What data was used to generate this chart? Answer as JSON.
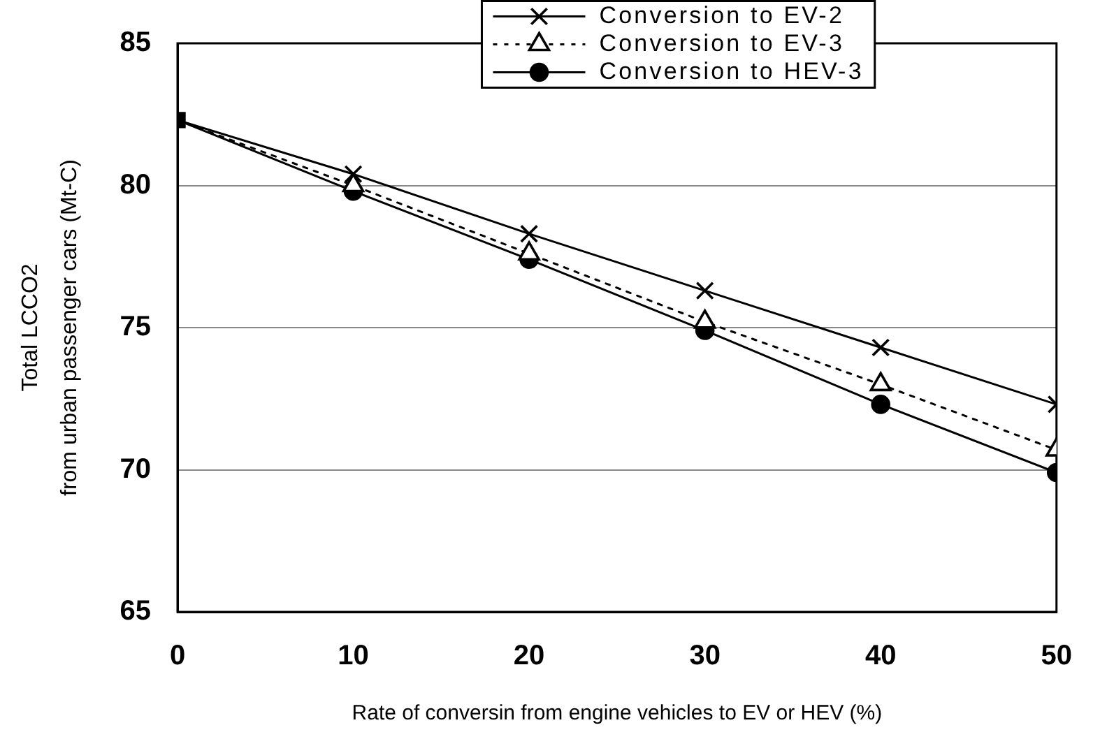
{
  "chart_data": {
    "type": "line",
    "xlabel": "Rate of conversin from engine vehicles to EV or HEV (%)",
    "ylabel": "Total LCCO2\nfrom urban passenger cars (Mt-C)",
    "x": [
      0,
      10,
      20,
      30,
      40,
      50
    ],
    "series": [
      {
        "type": "scatter",
        "color": "#000000",
        "marker": "square",
        "x": [
          0
        ],
        "values": [
          82.3
        ]
      },
      {
        "name": "Conversion to EV-2",
        "color": "#000000",
        "marker": "cross",
        "line_style": "solid",
        "values": [
          82.3,
          80.4,
          78.3,
          76.3,
          74.3,
          72.3
        ]
      },
      {
        "name": "Conversion to EV-3",
        "color": "#000000",
        "marker": "triangle",
        "line_style": "dotted",
        "values": [
          82.3,
          80.0,
          77.6,
          75.2,
          73.0,
          70.7
        ]
      },
      {
        "name": "Conversion to HEV-3",
        "color": "#000000",
        "marker": "circle",
        "line_style": "solid",
        "values": [
          82.3,
          79.8,
          77.4,
          74.9,
          72.3,
          69.9
        ]
      }
    ],
    "xlim": [
      0,
      50
    ],
    "xticks": [
      0,
      10,
      20,
      30,
      40,
      50
    ],
    "ylim": [
      65,
      85
    ],
    "yticks": [
      65,
      70,
      75,
      80,
      85
    ],
    "grid": "y",
    "legend": "top right"
  }
}
